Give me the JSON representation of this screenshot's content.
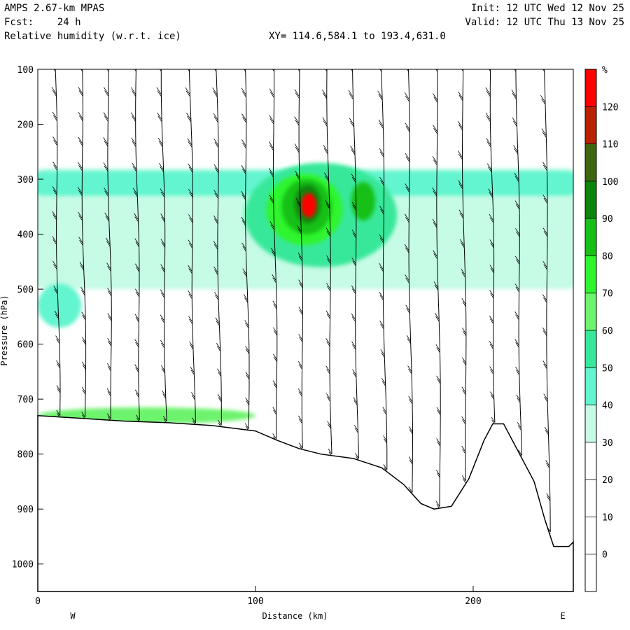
{
  "header": {
    "model": "AMPS 2.67-km MPAS",
    "fcst": "Fcst:    24 h",
    "field": "Relative humidity (w.r.t. ice)",
    "init": "Init: 12 UTC Wed 12 Nov 25",
    "valid": "Valid: 12 UTC Thu 13 Nov 25",
    "xy": "XY= 114.6,584.1 to 193.4,631.0"
  },
  "chart_data": {
    "type": "heatmap",
    "title": "Relative humidity (w.r.t. ice)",
    "xlabel": "Distance (km)",
    "ylabel": "Pressure (hPa)",
    "xlim": [
      0,
      246
    ],
    "ylim": [
      1050,
      100
    ],
    "x_ticks": [
      0,
      100,
      200
    ],
    "y_ticks": [
      100,
      200,
      300,
      400,
      500,
      600,
      700,
      800,
      900,
      1000
    ],
    "direction_labels": {
      "left": "W",
      "right": "E"
    },
    "colorbar": {
      "unit": "%",
      "ticks": [
        0,
        10,
        20,
        30,
        40,
        50,
        60,
        70,
        80,
        90,
        100,
        110,
        120
      ],
      "levels": [
        {
          "from": 30,
          "to": 40,
          "color": "#c6fbe6"
        },
        {
          "from": 40,
          "to": 50,
          "color": "#62f5cf"
        },
        {
          "from": 50,
          "to": 60,
          "color": "#38e89a"
        },
        {
          "from": 60,
          "to": 70,
          "color": "#6df36d"
        },
        {
          "from": 70,
          "to": 80,
          "color": "#2ef52e"
        },
        {
          "from": 80,
          "to": 90,
          "color": "#16c016"
        },
        {
          "from": 90,
          "to": 100,
          "color": "#0a860a"
        },
        {
          "from": 100,
          "to": 110,
          "color": "#3e6610"
        },
        {
          "from": 110,
          "to": 120,
          "color": "#b82200"
        },
        {
          "from": 120,
          "to": 130,
          "color": "#ff0000"
        }
      ]
    },
    "terrain_surface_hpa": [
      {
        "x": 0,
        "p": 730
      },
      {
        "x": 20,
        "p": 735
      },
      {
        "x": 40,
        "p": 740
      },
      {
        "x": 60,
        "p": 743
      },
      {
        "x": 80,
        "p": 748
      },
      {
        "x": 100,
        "p": 758
      },
      {
        "x": 110,
        "p": 775
      },
      {
        "x": 120,
        "p": 790
      },
      {
        "x": 130,
        "p": 800
      },
      {
        "x": 145,
        "p": 808
      },
      {
        "x": 158,
        "p": 825
      },
      {
        "x": 168,
        "p": 855
      },
      {
        "x": 176,
        "p": 890
      },
      {
        "x": 182,
        "p": 900
      },
      {
        "x": 190,
        "p": 895
      },
      {
        "x": 198,
        "p": 845
      },
      {
        "x": 205,
        "p": 775
      },
      {
        "x": 209,
        "p": 745
      },
      {
        "x": 214,
        "p": 745
      },
      {
        "x": 220,
        "p": 790
      },
      {
        "x": 228,
        "p": 850
      },
      {
        "x": 233,
        "p": 920
      },
      {
        "x": 237,
        "p": 968
      },
      {
        "x": 244,
        "p": 968
      },
      {
        "x": 246,
        "p": 960
      }
    ],
    "humid_regions": [
      {
        "value": 35,
        "x": [
          0,
          246
        ],
        "p": [
          280,
          500
        ]
      },
      {
        "value": 45,
        "x": [
          0,
          246
        ],
        "p": [
          285,
          330
        ]
      },
      {
        "value": 45,
        "x": [
          0,
          20
        ],
        "p": [
          490,
          570
        ]
      },
      {
        "value": 55,
        "x": [
          95,
          165
        ],
        "p": [
          270,
          460
        ]
      },
      {
        "value": 75,
        "x": [
          105,
          140
        ],
        "p": [
          290,
          420
        ]
      },
      {
        "value": 85,
        "x": [
          112,
          135
        ],
        "p": [
          300,
          400
        ]
      },
      {
        "value": 95,
        "x": [
          118,
          130
        ],
        "p": [
          310,
          380
        ]
      },
      {
        "value": 125,
        "x": [
          121,
          128
        ],
        "p": [
          325,
          370
        ]
      },
      {
        "value": 85,
        "x": [
          144,
          155
        ],
        "p": [
          305,
          375
        ]
      },
      {
        "value": 60,
        "x": [
          0,
          100
        ],
        "p": [
          715,
          745
        ]
      }
    ],
    "wind_profiles_km": [
      10,
      22,
      34,
      47,
      59,
      72,
      84,
      97,
      110,
      122,
      135,
      147,
      160,
      172,
      185,
      197,
      210,
      222,
      235
    ],
    "annotation": "wind barbs"
  }
}
